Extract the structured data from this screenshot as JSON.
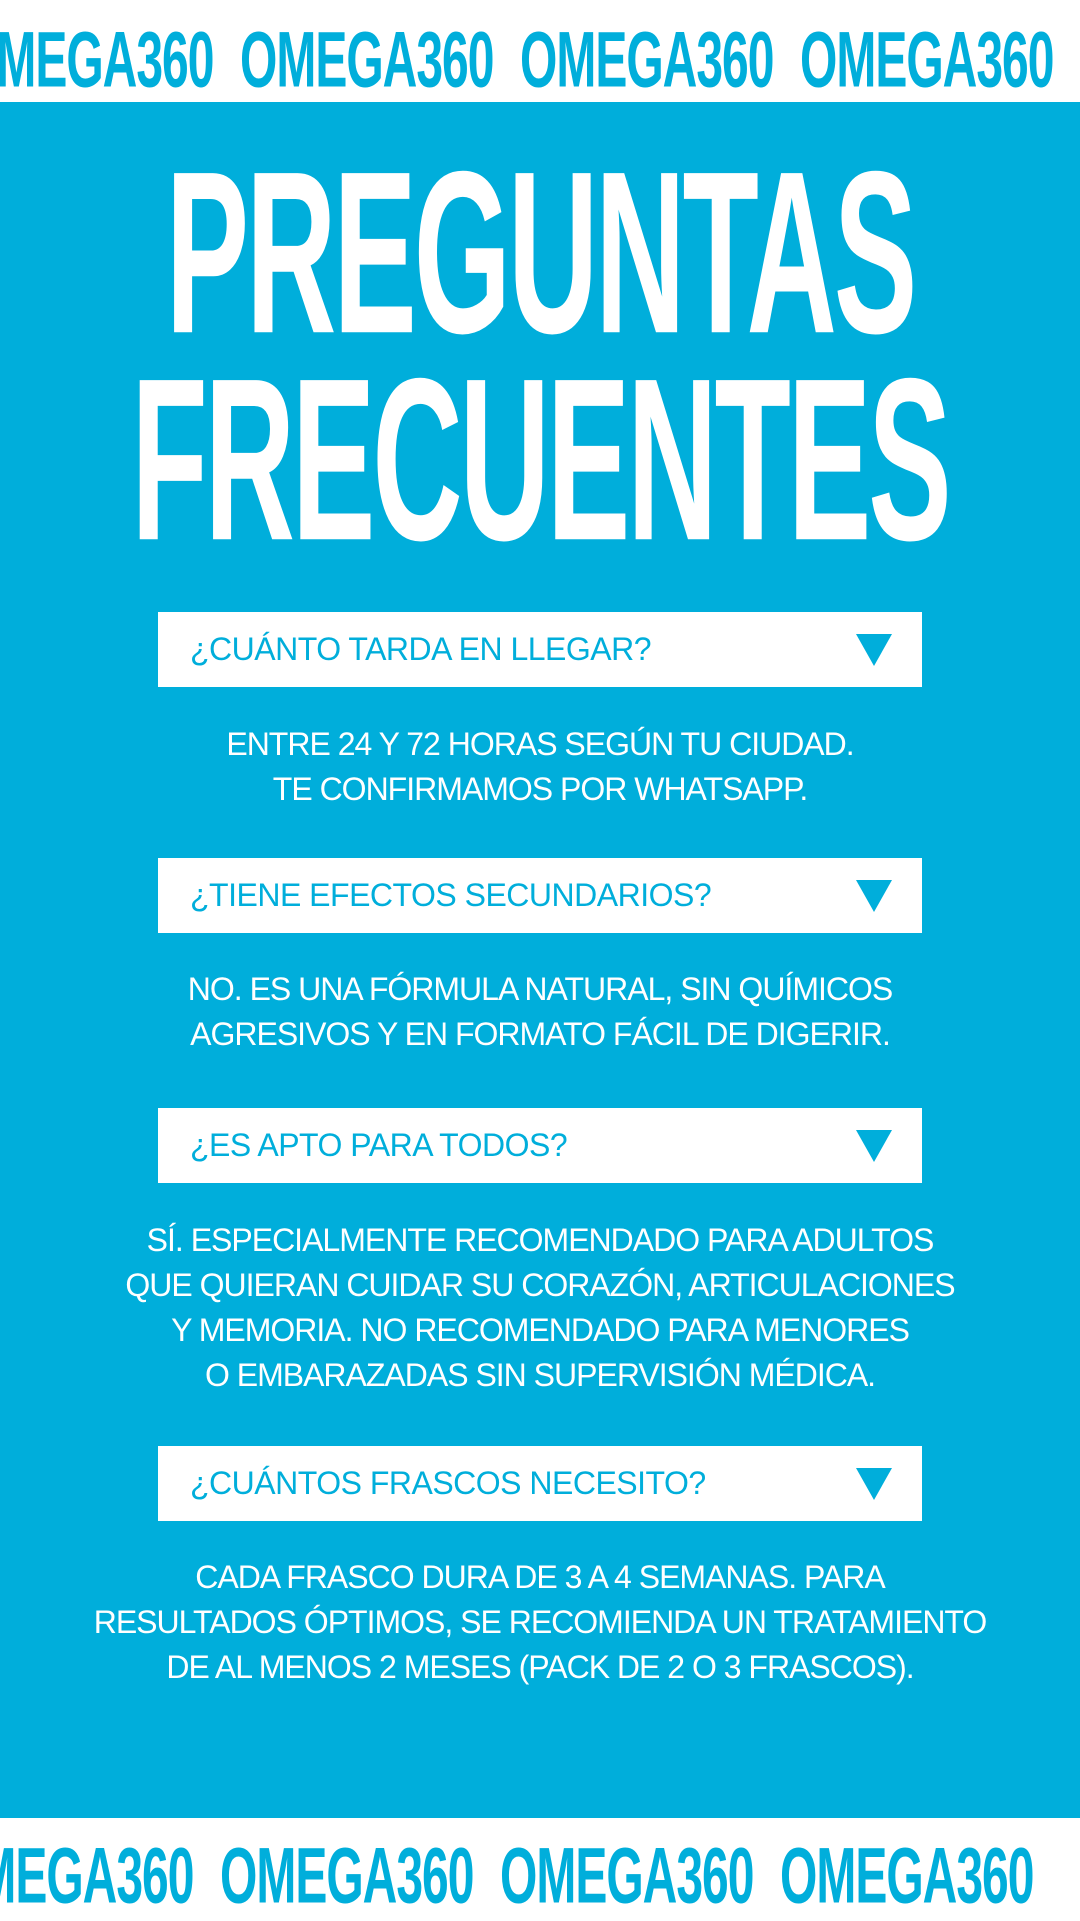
{
  "brand": {
    "ticker_text": "OMEGA360",
    "ticker_color": "#00AEDB",
    "background_color": "#00AEDB"
  },
  "title": {
    "line1": "PREGUNTAS",
    "line2": "FRECUENTES"
  },
  "faq": [
    {
      "question": "¿CUÁNTO TARDA EN LLEGAR?",
      "answer": [
        "ENTRE 24 Y 72 HORAS SEGÚN TU CIUDAD.",
        "TE CONFIRMAMOS POR WHATSAPP."
      ]
    },
    {
      "question": "¿TIENE EFECTOS SECUNDARIOS?",
      "answer": [
        "NO. ES UNA FÓRMULA NATURAL, SIN QUÍMICOS",
        "AGRESIVOS Y EN FORMATO FÁCIL DE DIGERIR."
      ]
    },
    {
      "question": "¿ES APTO PARA TODOS?",
      "answer": [
        "SÍ. ESPECIALMENTE RECOMENDADO PARA ADULTOS",
        "QUE QUIERAN CUIDAR SU CORAZÓN, ARTICULACIONES",
        "Y MEMORIA. NO RECOMENDADO PARA MENORES",
        "O EMBARAZADAS SIN SUPERVISIÓN MÉDICA."
      ]
    },
    {
      "question": "¿CUÁNTOS FRASCOS NECESITO?",
      "answer": [
        "CADA FRASCO DURA DE 3 A 4 SEMANAS. PARA",
        "RESULTADOS ÓPTIMOS, SE RECOMIENDA UN TRATAMIENTO",
        "DE AL MENOS 2 MESES (PACK DE 2 O 3 FRASCOS)."
      ]
    }
  ]
}
